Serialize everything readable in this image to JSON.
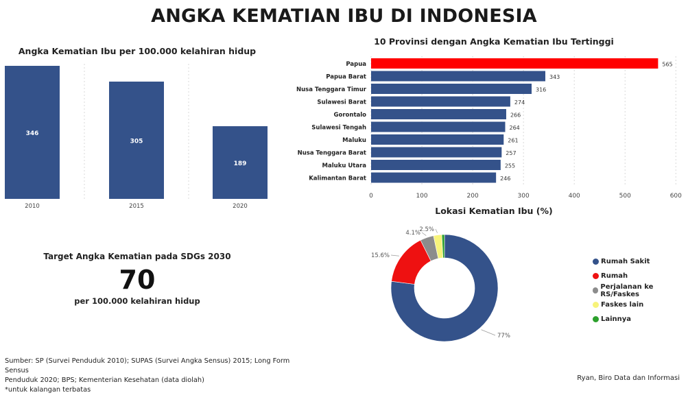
{
  "title": "ANGKA KEMATIAN IBU DI INDONESIA",
  "target": {
    "label": "Target Angka Kematian pada SDGs 2030",
    "value": "70",
    "unit": "per 100.000 kelahiran hidup"
  },
  "footer": {
    "source_line1": "Sumber: SP (Survei Penduduk 2010); SUPAS (Survei Angka Sensus) 2015; Long Form Sensus",
    "source_line2": "Penduduk 2020; BPS; Kementerian Kesehatan (data diolah)",
    "note": "*untuk kalangan terbatas",
    "credit": "Ryan, Biro Data dan Informasi"
  },
  "chart_data": [
    {
      "type": "bar",
      "title": "Angka Kematian Ibu per 100.000 kelahiran hidup",
      "categories": [
        "2010",
        "2015",
        "2020"
      ],
      "values": [
        346,
        305,
        189
      ],
      "ylim": [
        0,
        346
      ],
      "color": "#34528a",
      "grid": true
    },
    {
      "type": "bar",
      "orientation": "horizontal",
      "title": "10 Provinsi dengan Angka Kematian Ibu Tertinggi",
      "categories": [
        "Papua",
        "Papua Barat",
        "Nusa Tenggara Timur",
        "Sulawesi Barat",
        "Gorontalo",
        "Sulawesi Tengah",
        "Maluku",
        "Nusa Tenggara Barat",
        "Maluku Utara",
        "Kalimantan Barat"
      ],
      "values": [
        565,
        343,
        316,
        274,
        266,
        264,
        261,
        257,
        255,
        246
      ],
      "xticks": [
        0,
        100,
        200,
        300,
        400,
        500,
        600
      ],
      "xlim": [
        0,
        600
      ],
      "colors": {
        "highlight": "#ff0000",
        "default": "#34528a"
      },
      "grid": true
    },
    {
      "type": "pie",
      "title": "Lokasi Kematian Ibu (%)",
      "categories": [
        "Rumah Sakit",
        "Rumah",
        "Perjalanan ke RS/Faskes",
        "Faskes lain",
        "Lainnya"
      ],
      "values": [
        77.0,
        15.6,
        4.1,
        2.5,
        0.8
      ],
      "labels": [
        "77%",
        "15.6%",
        "4.1%",
        "2.5%",
        ""
      ],
      "colors": [
        "#34528a",
        "#ee1111",
        "#8c8c8c",
        "#f7f37a",
        "#2ca02c"
      ],
      "legend": "right"
    }
  ]
}
